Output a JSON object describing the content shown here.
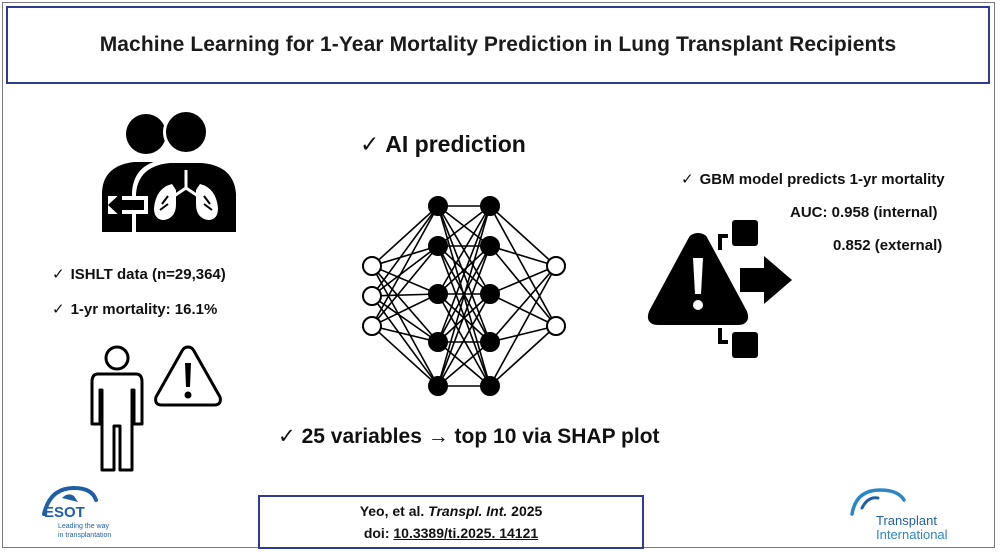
{
  "title": "Machine Learning for 1-Year Mortality Prediction in Lung Transplant Recipients",
  "check_mark": "✓",
  "ai_prediction": "AI prediction",
  "data_points": [
    "ISHLT data (n=29,364)",
    "1-yr mortality: 16.1%"
  ],
  "variables_text": "25 variables → top 10 via SHAP plot",
  "model": {
    "headline": "GBM model predicts 1-yr mortality",
    "auc_internal": "AUC: 0.958 (internal)",
    "auc_external": "0.852 (external)"
  },
  "citation": {
    "authors": "Yeo, et al.",
    "journal": "Transpl. Int.",
    "year": "2025",
    "doi_label": "doi:",
    "doi": "10.3389/ti.2025. 14121"
  },
  "logos": {
    "esot_name": "ESOT",
    "esot_tagline_1": "Leading the way",
    "esot_tagline_2": "in transplantation",
    "ti_name_1": "Transplant",
    "ti_name_2": "International"
  },
  "colors": {
    "border_blue": "#2f3b8f",
    "logo_blue": "#1f5fa8",
    "logo_cyan": "#2b86c6",
    "icon_black": "#000000"
  },
  "icons": [
    "lung-transplant-people-icon",
    "person-icon",
    "warning-icon",
    "neural-network-icon",
    "warning-split-arrow-icon"
  ]
}
